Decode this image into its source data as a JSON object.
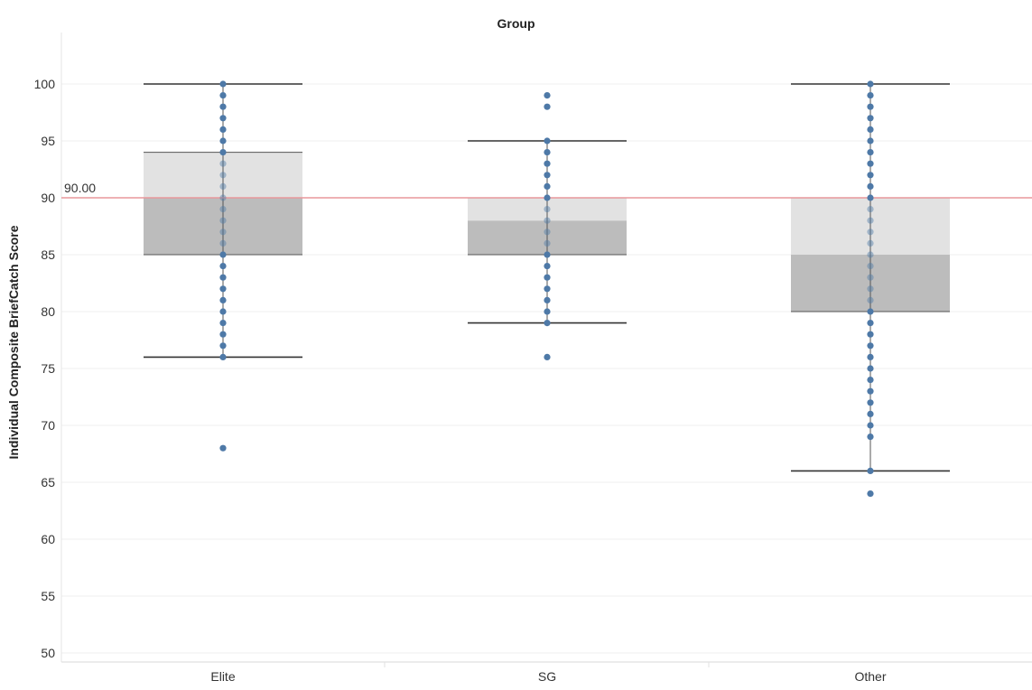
{
  "chart_data": {
    "type": "box",
    "column_header": "Group",
    "ylabel": "Individual Composite BriefCatch Score",
    "ylim": [
      49,
      104
    ],
    "yticks": [
      50,
      55,
      60,
      65,
      70,
      75,
      80,
      85,
      90,
      95,
      100
    ],
    "grid": true,
    "categories": [
      "Elite",
      "SG",
      "Other"
    ],
    "reference_line": {
      "value": 90,
      "label": "90.00",
      "color": "#e8979b"
    },
    "colors": {
      "point": "#4e79a7",
      "box_lower": "#bcbcbc",
      "box_upper": "#e2e2e2",
      "whisker": "#333333"
    },
    "boxes": [
      {
        "category": "Elite",
        "whisker_low": 76,
        "q1": 85,
        "median": 90,
        "q3": 94,
        "whisker_high": 100,
        "points": [
          68,
          76,
          77,
          78,
          79,
          80,
          81,
          82,
          83,
          84,
          85,
          86,
          87,
          88,
          89,
          90,
          91,
          92,
          93,
          94,
          95,
          96,
          97,
          98,
          99,
          100
        ]
      },
      {
        "category": "SG",
        "whisker_low": 79,
        "q1": 85,
        "median": 88,
        "q3": 90,
        "whisker_high": 95,
        "points": [
          76,
          79,
          80,
          81,
          82,
          83,
          84,
          85,
          86,
          87,
          88,
          89,
          90,
          91,
          92,
          93,
          94,
          95,
          98,
          99
        ]
      },
      {
        "category": "Other",
        "whisker_low": 66,
        "q1": 80,
        "median": 85,
        "q3": 90,
        "whisker_high": 100,
        "points": [
          64,
          66,
          69,
          70,
          71,
          72,
          73,
          74,
          75,
          76,
          77,
          78,
          79,
          80,
          81,
          82,
          83,
          84,
          85,
          86,
          87,
          88,
          89,
          90,
          91,
          92,
          93,
          94,
          95,
          96,
          97,
          98,
          99,
          100
        ]
      }
    ]
  }
}
